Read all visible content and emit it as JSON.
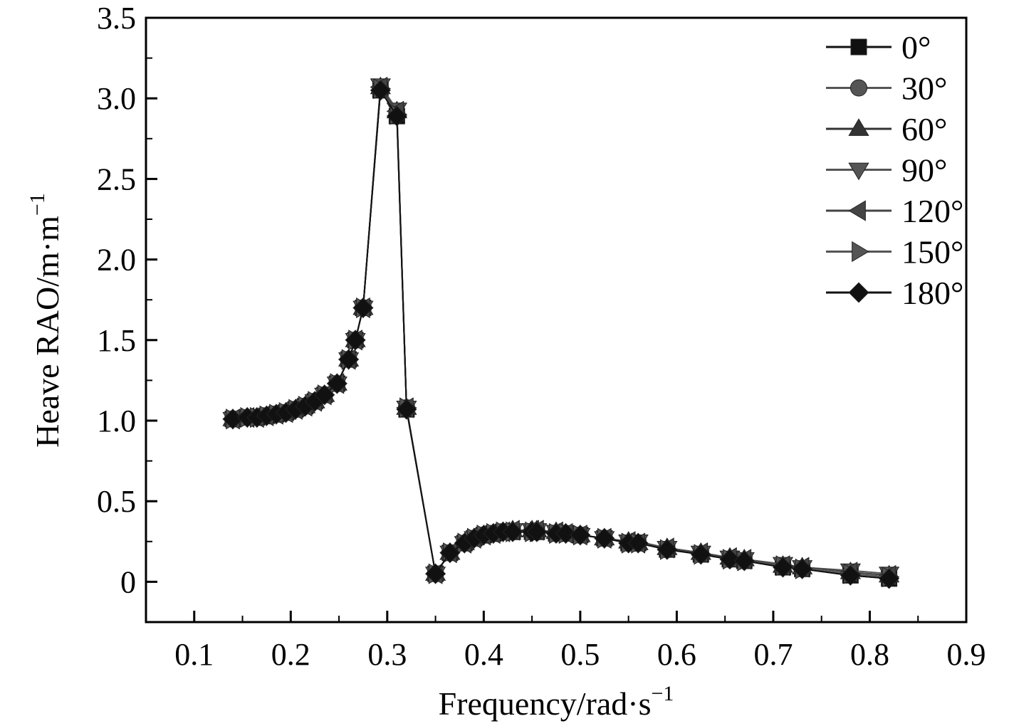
{
  "chart_data": {
    "type": "line",
    "title": "",
    "xlabel": "Frequency/rad·s",
    "xlabel_sup": "−1",
    "ylabel": "Heave RAO/m·m",
    "ylabel_sup": "−1",
    "xlim": [
      0.05,
      0.9
    ],
    "ylim": [
      -0.25,
      3.5
    ],
    "xticks": [
      0.1,
      0.2,
      0.3,
      0.4,
      0.5,
      0.6,
      0.7,
      0.8,
      0.9
    ],
    "xtick_labels": [
      "0.1",
      "0.2",
      "0.3",
      "0.4",
      "0.5",
      "0.6",
      "0.7",
      "0.8",
      "0.9"
    ],
    "yticks": [
      0,
      0.5,
      1.0,
      1.5,
      2.0,
      2.5,
      3.0,
      3.5
    ],
    "ytick_labels": [
      "0",
      "0.5",
      "1.0",
      "1.5",
      "2.0",
      "2.5",
      "3.0",
      "3.5"
    ],
    "grid": false,
    "legend_position": "top-right",
    "x": [
      0.14,
      0.155,
      0.165,
      0.175,
      0.185,
      0.195,
      0.205,
      0.215,
      0.225,
      0.235,
      0.248,
      0.26,
      0.267,
      0.275,
      0.293,
      0.31,
      0.32,
      0.35,
      0.365,
      0.38,
      0.39,
      0.4,
      0.41,
      0.42,
      0.43,
      0.45,
      0.455,
      0.475,
      0.485,
      0.5,
      0.525,
      0.55,
      0.56,
      0.59,
      0.625,
      0.655,
      0.67,
      0.71,
      0.73,
      0.78,
      0.82
    ],
    "series": [
      {
        "name": "0°",
        "marker": "square",
        "color": "#111111",
        "values": [
          1.01,
          1.02,
          1.02,
          1.03,
          1.04,
          1.05,
          1.07,
          1.09,
          1.12,
          1.16,
          1.23,
          1.38,
          1.5,
          1.7,
          3.05,
          2.89,
          1.07,
          0.05,
          0.18,
          0.24,
          0.27,
          0.29,
          0.3,
          0.31,
          0.31,
          0.31,
          0.31,
          0.3,
          0.3,
          0.29,
          0.27,
          0.24,
          0.24,
          0.2,
          0.17,
          0.14,
          0.13,
          0.09,
          0.08,
          0.04,
          0.02
        ]
      },
      {
        "name": "30°",
        "marker": "circle",
        "color": "#555555",
        "values": [
          1.01,
          1.02,
          1.02,
          1.03,
          1.04,
          1.05,
          1.07,
          1.09,
          1.12,
          1.16,
          1.23,
          1.38,
          1.5,
          1.7,
          3.06,
          2.9,
          1.08,
          0.05,
          0.18,
          0.24,
          0.27,
          0.29,
          0.3,
          0.31,
          0.31,
          0.31,
          0.31,
          0.3,
          0.3,
          0.29,
          0.27,
          0.24,
          0.24,
          0.2,
          0.17,
          0.14,
          0.13,
          0.1,
          0.08,
          0.05,
          0.03
        ]
      },
      {
        "name": "60°",
        "marker": "triangle-up",
        "color": "#333333",
        "values": [
          1.01,
          1.02,
          1.02,
          1.03,
          1.04,
          1.05,
          1.07,
          1.09,
          1.12,
          1.16,
          1.23,
          1.38,
          1.5,
          1.7,
          3.07,
          2.92,
          1.08,
          0.05,
          0.18,
          0.24,
          0.27,
          0.29,
          0.3,
          0.31,
          0.32,
          0.32,
          0.32,
          0.31,
          0.3,
          0.29,
          0.27,
          0.25,
          0.24,
          0.21,
          0.18,
          0.15,
          0.14,
          0.1,
          0.09,
          0.06,
          0.04
        ]
      },
      {
        "name": "90°",
        "marker": "triangle-down",
        "color": "#555555",
        "values": [
          1.01,
          1.02,
          1.02,
          1.03,
          1.04,
          1.05,
          1.07,
          1.09,
          1.12,
          1.16,
          1.23,
          1.38,
          1.5,
          1.7,
          3.08,
          2.93,
          1.08,
          0.05,
          0.18,
          0.24,
          0.27,
          0.29,
          0.3,
          0.31,
          0.32,
          0.32,
          0.32,
          0.31,
          0.3,
          0.29,
          0.27,
          0.25,
          0.25,
          0.21,
          0.18,
          0.15,
          0.14,
          0.11,
          0.09,
          0.07,
          0.05
        ]
      },
      {
        "name": "120°",
        "marker": "triangle-left",
        "color": "#444444",
        "values": [
          1.01,
          1.02,
          1.02,
          1.03,
          1.04,
          1.05,
          1.07,
          1.09,
          1.12,
          1.16,
          1.23,
          1.38,
          1.5,
          1.7,
          3.07,
          2.92,
          1.08,
          0.05,
          0.18,
          0.24,
          0.27,
          0.29,
          0.3,
          0.31,
          0.32,
          0.32,
          0.32,
          0.31,
          0.3,
          0.29,
          0.27,
          0.25,
          0.24,
          0.21,
          0.18,
          0.15,
          0.14,
          0.1,
          0.09,
          0.06,
          0.04
        ]
      },
      {
        "name": "150°",
        "marker": "triangle-right",
        "color": "#555555",
        "values": [
          1.01,
          1.02,
          1.02,
          1.03,
          1.04,
          1.05,
          1.07,
          1.09,
          1.12,
          1.16,
          1.23,
          1.38,
          1.5,
          1.7,
          3.06,
          2.9,
          1.08,
          0.05,
          0.18,
          0.24,
          0.27,
          0.29,
          0.3,
          0.31,
          0.31,
          0.31,
          0.31,
          0.3,
          0.3,
          0.29,
          0.27,
          0.24,
          0.24,
          0.2,
          0.17,
          0.14,
          0.13,
          0.1,
          0.08,
          0.05,
          0.03
        ]
      },
      {
        "name": "180°",
        "marker": "diamond",
        "color": "#111111",
        "values": [
          1.01,
          1.02,
          1.02,
          1.03,
          1.04,
          1.05,
          1.07,
          1.09,
          1.12,
          1.16,
          1.23,
          1.38,
          1.5,
          1.7,
          3.05,
          2.89,
          1.07,
          0.05,
          0.18,
          0.24,
          0.27,
          0.29,
          0.3,
          0.31,
          0.31,
          0.31,
          0.31,
          0.3,
          0.3,
          0.29,
          0.27,
          0.24,
          0.24,
          0.2,
          0.17,
          0.14,
          0.13,
          0.09,
          0.08,
          0.04,
          0.02
        ]
      }
    ]
  }
}
